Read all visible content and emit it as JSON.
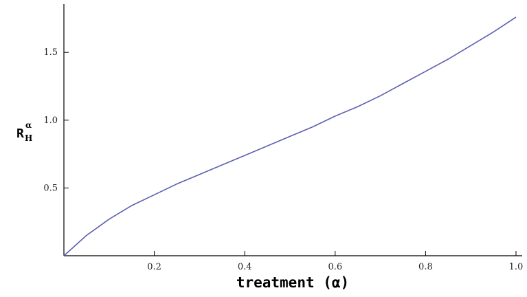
{
  "chart_data": {
    "type": "line",
    "xlabel": "treatment (α)",
    "ylabel": {
      "base": "R",
      "subscript": "H",
      "superscript": "α"
    },
    "xlim": [
      0,
      1.0
    ],
    "ylim": [
      0,
      1.8
    ],
    "x_ticks": [
      {
        "value": 0.2,
        "label": "0.2"
      },
      {
        "value": 0.4,
        "label": "0.4"
      },
      {
        "value": 0.6,
        "label": "0.6"
      },
      {
        "value": 0.8,
        "label": "0.8"
      },
      {
        "value": 1.0,
        "label": "1.0"
      }
    ],
    "y_ticks": [
      {
        "value": 0.5,
        "label": "0.5"
      },
      {
        "value": 1.0,
        "label": "1.0"
      },
      {
        "value": 1.5,
        "label": "1.5"
      }
    ],
    "grid": false,
    "series": [
      {
        "color": "#5b5fb0",
        "x": [
          0,
          0.05,
          0.1,
          0.15,
          0.2,
          0.25,
          0.3,
          0.35,
          0.4,
          0.45,
          0.5,
          0.55,
          0.6,
          0.65,
          0.7,
          0.75,
          0.8,
          0.85,
          0.9,
          0.95,
          1.0
        ],
        "y": [
          0,
          0.15,
          0.27,
          0.37,
          0.45,
          0.53,
          0.6,
          0.67,
          0.74,
          0.81,
          0.88,
          0.95,
          1.03,
          1.1,
          1.18,
          1.27,
          1.36,
          1.45,
          1.55,
          1.65,
          1.76
        ]
      }
    ]
  }
}
